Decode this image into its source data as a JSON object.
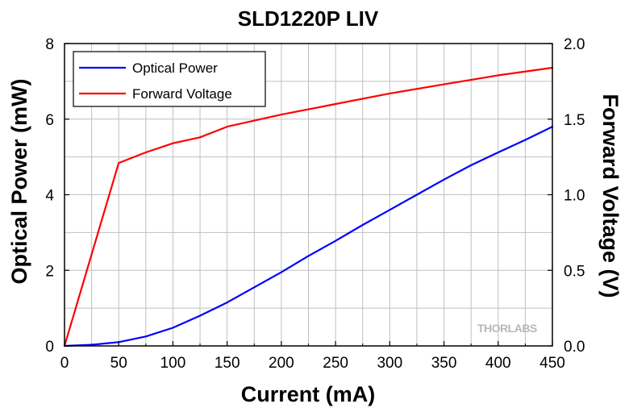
{
  "chart_data": {
    "type": "line",
    "title": "SLD1220P LIV",
    "xlabel": "Current (mA)",
    "ylabel": "Optical Power (mW)",
    "y2label": "Forward Voltage (V)",
    "xlim": [
      0,
      450
    ],
    "ylim": [
      0,
      8
    ],
    "y2lim": [
      0.0,
      2.0
    ],
    "x_ticks": [
      "0",
      "50",
      "100",
      "150",
      "200",
      "250",
      "300",
      "350",
      "400",
      "450"
    ],
    "y_ticks": [
      "0",
      "2",
      "4",
      "6",
      "8"
    ],
    "y2_ticks": [
      "0.0",
      "0.5",
      "1.0",
      "1.5",
      "2.0"
    ],
    "grid": true,
    "legend_position": "top-left",
    "series": [
      {
        "name": "Optical Power",
        "axis": "left",
        "color": "#0000ff",
        "x": [
          0,
          25,
          50,
          75,
          100,
          125,
          150,
          175,
          200,
          225,
          250,
          275,
          300,
          325,
          350,
          375,
          400,
          425,
          450
        ],
        "values": [
          0,
          0.03,
          0.1,
          0.25,
          0.48,
          0.8,
          1.15,
          1.55,
          1.95,
          2.38,
          2.78,
          3.2,
          3.6,
          4.0,
          4.4,
          4.78,
          5.12,
          5.45,
          5.8
        ]
      },
      {
        "name": "Forward Voltage",
        "axis": "right",
        "color": "#ff0000",
        "x": [
          0,
          50,
          75,
          100,
          125,
          150,
          200,
          250,
          300,
          350,
          400,
          450
        ],
        "values": [
          0.0,
          1.21,
          1.28,
          1.34,
          1.38,
          1.45,
          1.53,
          1.6,
          1.67,
          1.73,
          1.79,
          1.84
        ]
      }
    ],
    "watermark": "THORLABS"
  }
}
